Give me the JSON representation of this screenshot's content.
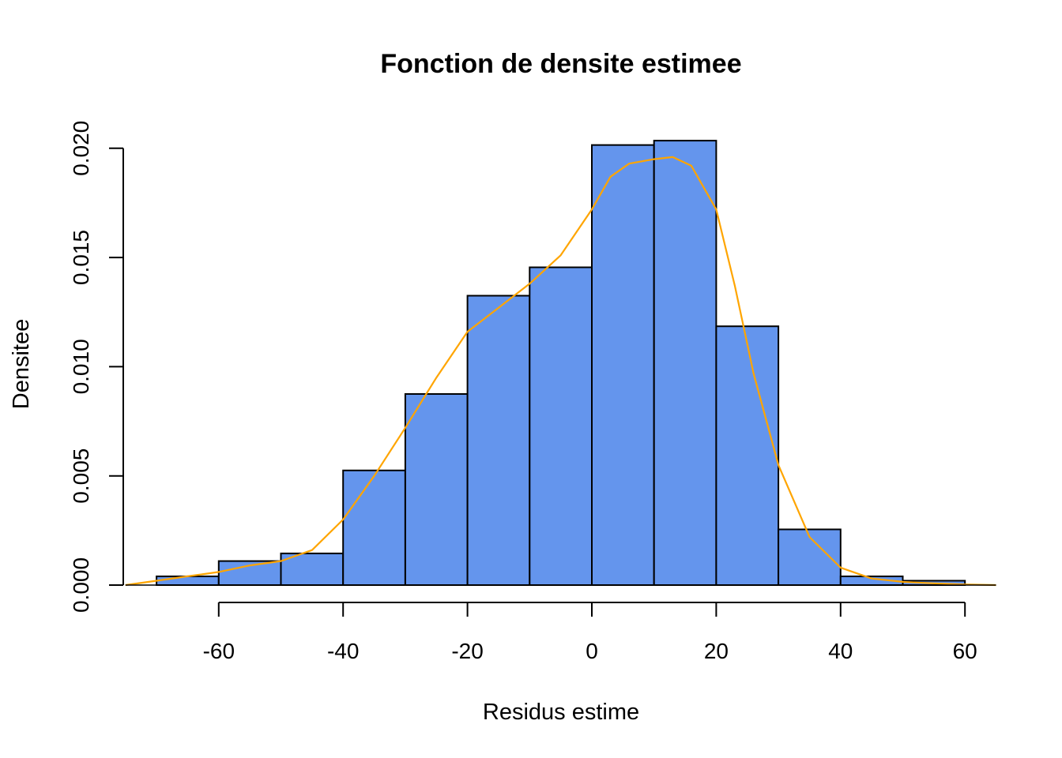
{
  "chart_data": {
    "type": "bar",
    "title": "Fonction de densite estimee",
    "xlabel": "Residus estime",
    "ylabel": "Densitee",
    "xlim": [
      -75,
      65
    ],
    "ylim": [
      0,
      0.0205
    ],
    "xticks": [
      "-60",
      "-40",
      "-20",
      "0",
      "20",
      "40",
      "60"
    ],
    "yticks": [
      "0.000",
      "0.005",
      "0.010",
      "0.015",
      "0.020"
    ],
    "bins": [
      {
        "x0": -70,
        "x1": -60,
        "density": 0.0004
      },
      {
        "x0": -60,
        "x1": -50,
        "density": 0.0011
      },
      {
        "x0": -50,
        "x1": -40,
        "density": 0.00145
      },
      {
        "x0": -40,
        "x1": -30,
        "density": 0.00525
      },
      {
        "x0": -30,
        "x1": -20,
        "density": 0.00875
      },
      {
        "x0": -20,
        "x1": -10,
        "density": 0.01325
      },
      {
        "x0": -10,
        "x1": 0,
        "density": 0.01455
      },
      {
        "x0": 0,
        "x1": 10,
        "density": 0.02015
      },
      {
        "x0": 10,
        "x1": 20,
        "density": 0.02035
      },
      {
        "x0": 20,
        "x1": 30,
        "density": 0.01185
      },
      {
        "x0": 30,
        "x1": 40,
        "density": 0.00255
      },
      {
        "x0": 40,
        "x1": 50,
        "density": 0.0004
      },
      {
        "x0": 50,
        "x1": 60,
        "density": 0.0002
      }
    ],
    "density_curve": {
      "x": [
        -75,
        -70,
        -65,
        -60,
        -55,
        -50,
        -45,
        -40,
        -35,
        -30,
        -25,
        -20,
        -15,
        -10,
        -5,
        0,
        3,
        6,
        10,
        13,
        16,
        20,
        23,
        26,
        30,
        35,
        40,
        45,
        50,
        55,
        60,
        65
      ],
      "y": [
        0.0,
        0.0002,
        0.0004,
        0.0006,
        0.0009,
        0.0011,
        0.0016,
        0.003,
        0.005,
        0.0072,
        0.0095,
        0.0116,
        0.0127,
        0.0138,
        0.0151,
        0.0172,
        0.0187,
        0.0193,
        0.0195,
        0.0196,
        0.0192,
        0.0172,
        0.0137,
        0.0097,
        0.0055,
        0.0022,
        0.0008,
        0.0003,
        0.00015,
        8e-05,
        3e-05,
        0.0
      ]
    },
    "grid": false,
    "colors": {
      "bar_fill": "#6495ED",
      "bar_stroke": "#000000",
      "curve": "#FFA500"
    }
  }
}
